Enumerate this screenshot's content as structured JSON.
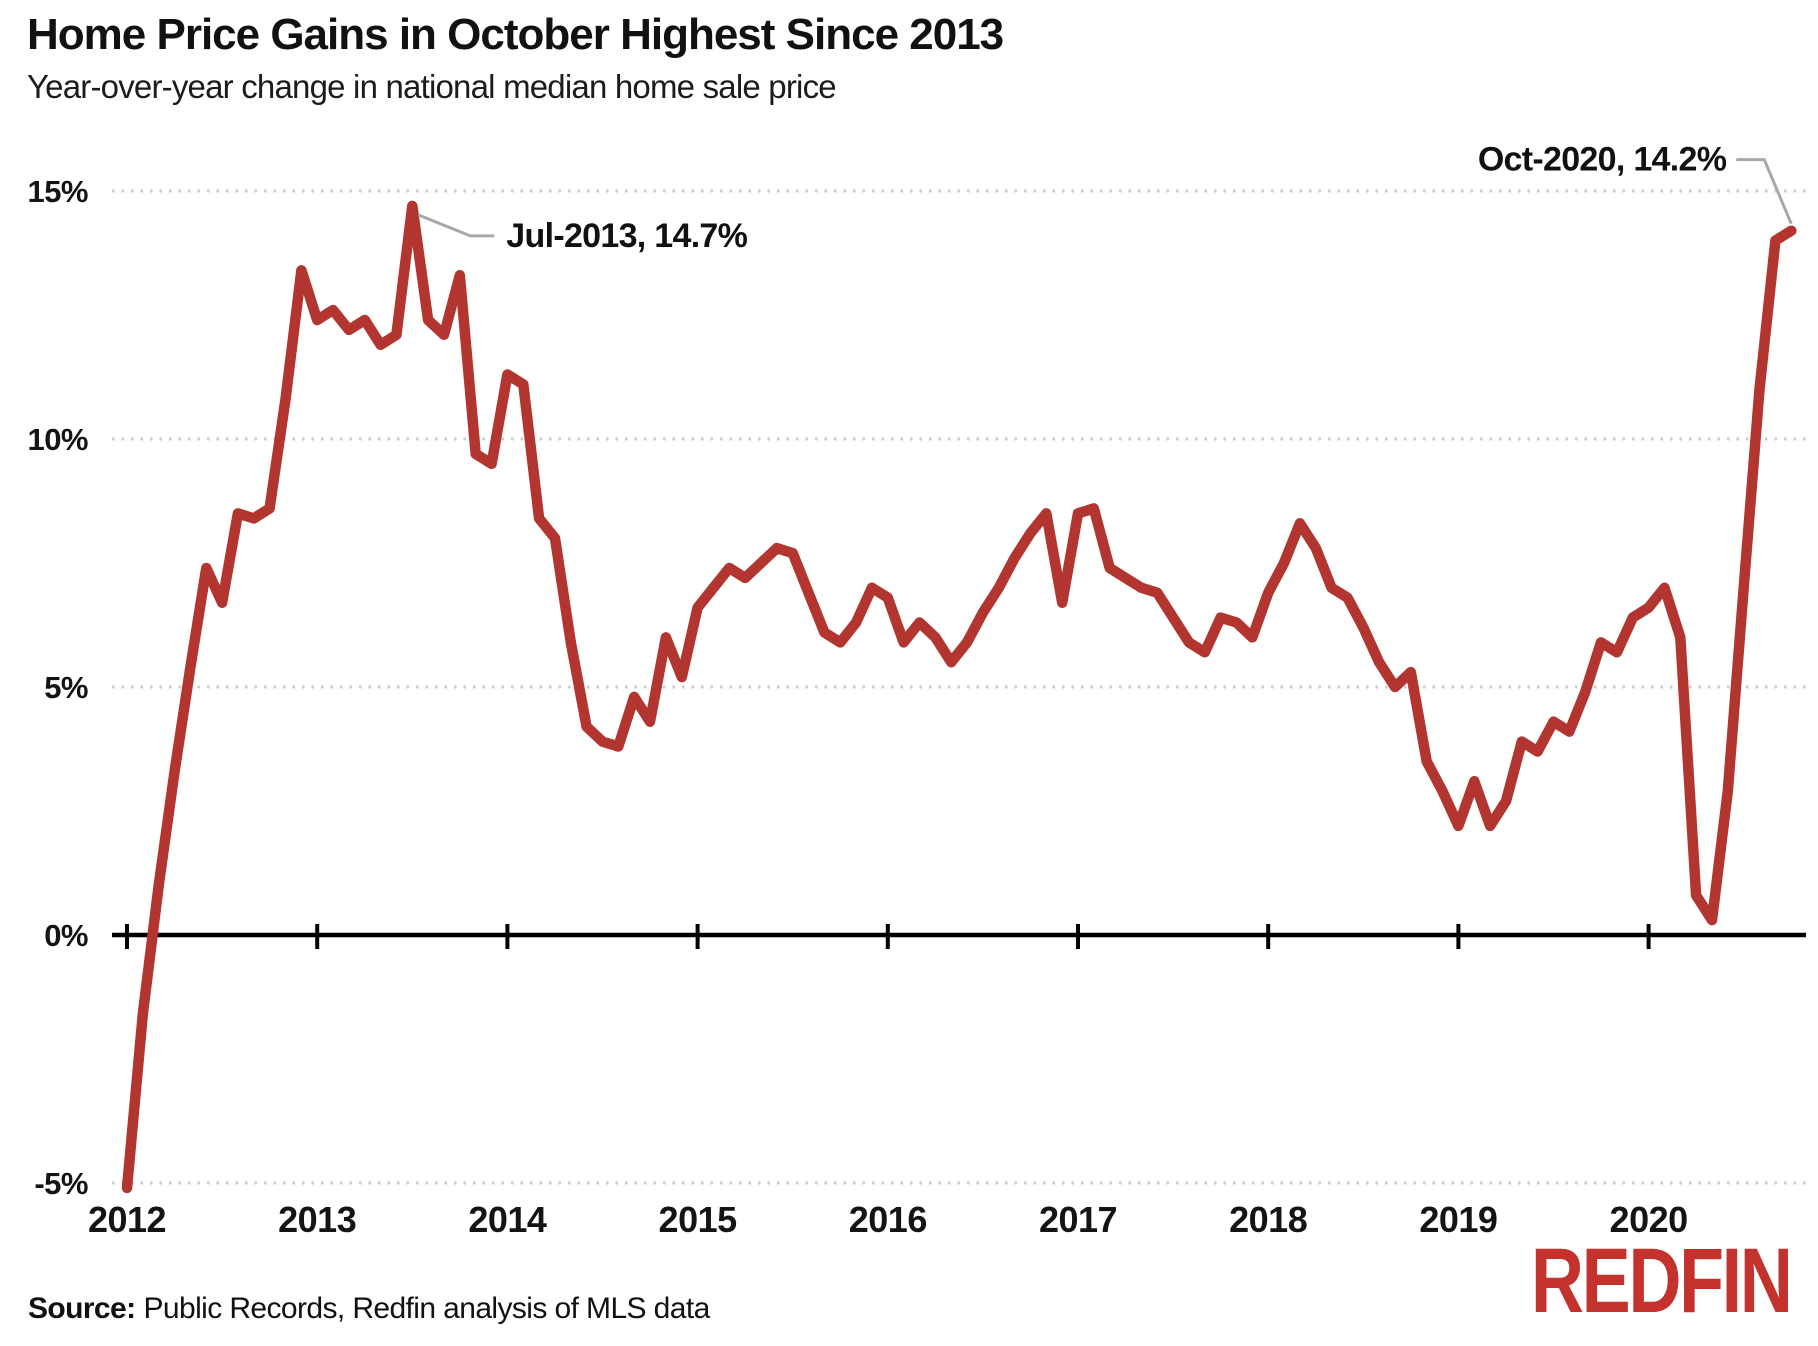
{
  "page": {
    "title": "Home Price Gains in October Highest Since 2013",
    "subtitle": "Year-over-year change in national median home sale price"
  },
  "footer": {
    "source_label": "Source:",
    "source_text": "Public Records, Redfin analysis of MLS data",
    "logo_text": "REDFIN"
  },
  "colors": {
    "line": "#b33530",
    "logo": "#c3322d",
    "grid": "#cccccc",
    "axis": "#000000",
    "leader": "#a8a8a8",
    "text": "#141414"
  },
  "chart_data": {
    "type": "line",
    "title": "Home Price Gains in October Highest Since 2013",
    "subtitle": "Year-over-year change in national median home sale price",
    "x_unit": "month",
    "x_start": "Jan-2012",
    "x_end": "Oct-2020",
    "x_tick_labels": [
      "2012",
      "2013",
      "2014",
      "2015",
      "2016",
      "2017",
      "2018",
      "2019",
      "2020"
    ],
    "y_tick_labels": [
      "15%",
      "10%",
      "5%",
      "0%",
      "-5%"
    ],
    "y_tick_values": [
      15,
      10,
      5,
      0,
      -5
    ],
    "ylim": [
      -5.5,
      15.5
    ],
    "grid": "horizontal-dotted",
    "legend": "none",
    "series": [
      {
        "name": "YoY change in national median home sale price",
        "years": [
          {
            "year": 2012,
            "values": [
              -5.1,
              -1.6,
              1.0,
              3.3,
              5.4,
              7.4,
              6.7,
              8.5,
              8.4,
              8.6,
              10.8,
              13.4
            ]
          },
          {
            "year": 2013,
            "values": [
              12.4,
              12.6,
              12.2,
              12.4,
              11.9,
              12.1,
              14.7,
              12.4,
              12.1,
              13.3,
              9.7,
              9.5
            ]
          },
          {
            "year": 2014,
            "values": [
              11.3,
              11.1,
              8.4,
              8.0,
              5.9,
              4.2,
              3.9,
              3.8,
              4.8,
              4.3,
              6.0,
              5.2
            ]
          },
          {
            "year": 2015,
            "values": [
              6.6,
              7.0,
              7.4,
              7.2,
              7.5,
              7.8,
              7.7,
              6.9,
              6.1,
              5.9,
              6.3,
              7.0
            ]
          },
          {
            "year": 2016,
            "values": [
              6.8,
              5.9,
              6.3,
              6.0,
              5.5,
              5.9,
              6.5,
              7.0,
              7.6,
              8.1,
              8.5,
              6.7
            ]
          },
          {
            "year": 2017,
            "values": [
              8.5,
              8.6,
              7.4,
              7.2,
              7.0,
              6.9,
              6.4,
              5.9,
              5.7,
              6.4,
              6.3,
              6.0
            ]
          },
          {
            "year": 2018,
            "values": [
              6.9,
              7.5,
              8.3,
              7.8,
              7.0,
              6.8,
              6.2,
              5.5,
              5.0,
              5.3,
              3.5,
              2.9
            ]
          },
          {
            "year": 2019,
            "values": [
              2.2,
              3.1,
              2.2,
              2.7,
              3.9,
              3.7,
              4.3,
              4.1,
              4.9,
              5.9,
              5.7,
              6.4
            ]
          },
          {
            "year": 2020,
            "values": [
              6.6,
              7.0,
              6.0,
              0.8,
              0.3,
              2.9,
              7.0,
              11.0,
              14.0,
              14.2
            ]
          }
        ]
      }
    ],
    "annotations": [
      {
        "month": "Jul-2013",
        "value": 14.7,
        "label": "Jul-2013, 14.7%",
        "side": "left"
      },
      {
        "month": "Oct-2020",
        "value": 14.2,
        "label": "Oct-2020, 14.2%",
        "side": "right"
      }
    ]
  }
}
